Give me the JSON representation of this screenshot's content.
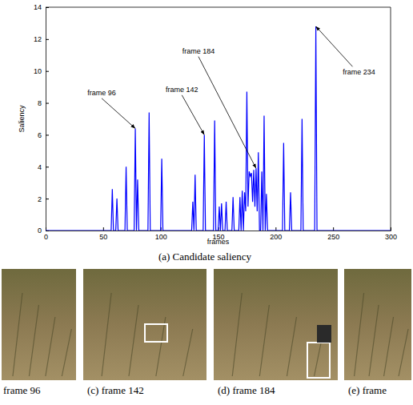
{
  "chart_data": {
    "type": "line",
    "title": "(a) Candidate saliency",
    "x_label": "frames",
    "y_label": "Saliency",
    "x": [
      0,
      57,
      58,
      59,
      61,
      62,
      63,
      69,
      70,
      71,
      77,
      78,
      79,
      80,
      81,
      89,
      90,
      91,
      100,
      101,
      102,
      127,
      128,
      129,
      130,
      131,
      137,
      138,
      139,
      146,
      147,
      148,
      150,
      151,
      152,
      153,
      154,
      156,
      157,
      158,
      162,
      163,
      164,
      168,
      169,
      170,
      171,
      172,
      173,
      174,
      175,
      176,
      177,
      178,
      179,
      180,
      181,
      182,
      183,
      184,
      185,
      186,
      187,
      188,
      189,
      190,
      191,
      192,
      193,
      206,
      207,
      208,
      212,
      213,
      214,
      222,
      223,
      224,
      234,
      235,
      236,
      300
    ],
    "series": [
      {
        "color": "#0000ff",
        "values": [
          0,
          0,
          2.6,
          0,
          0,
          2.0,
          0,
          0,
          4.0,
          0,
          0,
          6.4,
          0,
          3.2,
          0,
          0,
          7.4,
          0,
          0,
          4.5,
          0,
          0,
          1.8,
          0,
          3.5,
          0,
          0,
          6.0,
          0,
          0,
          6.9,
          0,
          0,
          1.5,
          0,
          1.7,
          0,
          0,
          1.8,
          0,
          0,
          2.1,
          0,
          0,
          2.1,
          0,
          2.5,
          0,
          2.4,
          1.2,
          8.7,
          1.5,
          3.7,
          3.4,
          3.6,
          1.8,
          3.8,
          1.5,
          3.9,
          1.2,
          4.9,
          0,
          0,
          3.7,
          0,
          7.2,
          0,
          2.3,
          0,
          0,
          5.5,
          0,
          0,
          2.4,
          0,
          0,
          7.0,
          0,
          0,
          12.8,
          0,
          0
        ]
      }
    ],
    "xlim": [
      0,
      300
    ],
    "xticks": [
      0,
      50,
      100,
      150,
      200,
      250,
      300
    ],
    "ylim": [
      0,
      14
    ],
    "yticks": [
      0,
      2,
      4,
      6,
      8,
      10,
      12,
      14
    ],
    "grid": false,
    "annotations": [
      {
        "text": "frame 96",
        "x": 78,
        "y": 6.4
      },
      {
        "text": "frame 142",
        "x": 138,
        "y": 6.0
      },
      {
        "text": "frame 184",
        "x": 183,
        "y": 3.9
      },
      {
        "text": "frame 234",
        "x": 235,
        "y": 12.8
      }
    ]
  },
  "subfigures": {
    "captions": [
      "frame 96",
      "(c) frame 142",
      "(d) frame 184",
      "(e) frame"
    ]
  }
}
